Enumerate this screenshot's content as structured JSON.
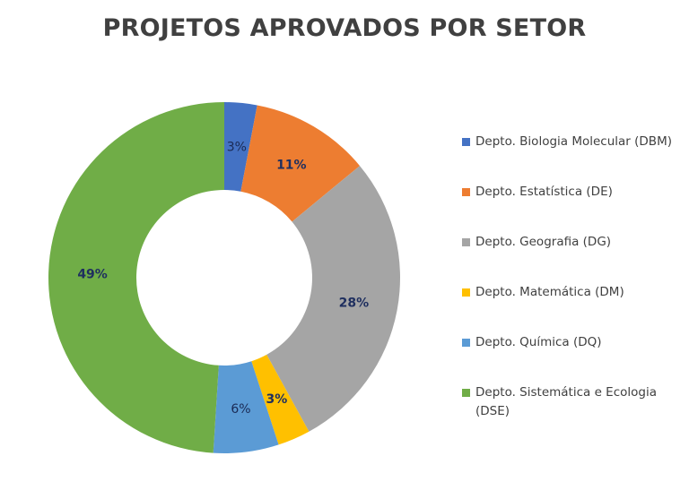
{
  "title": "PROJETOS APROVADOS POR SETOR",
  "chart_data": {
    "type": "pie",
    "subtype": "donut",
    "title": "PROJETOS APROVADOS POR SETOR",
    "categories": [
      "Depto. Biologia Molecular (DBM)",
      "Depto. Estatística (DE)",
      "Depto. Geografia (DG)",
      "Depto. Matemática (DM)",
      "Depto. Química (DQ)",
      "Depto. Sistemática e Ecologia (DSE)"
    ],
    "values": [
      3,
      11,
      28,
      3,
      6,
      49
    ],
    "unit": "%",
    "data_labels": [
      "3%",
      "11%",
      "28%",
      "3%",
      "6%",
      "49%"
    ],
    "colors": [
      "#4472c4",
      "#ed7d31",
      "#a5a5a5",
      "#ffc000",
      "#5b9bd5",
      "#70ad47"
    ],
    "legend_position": "right",
    "start_angle_deg": 0,
    "direction": "clockwise"
  },
  "legend": {
    "items": [
      {
        "label": "Depto. Biologia Molecular (DBM)",
        "color": "#4472c4"
      },
      {
        "label": "Depto. Estatística (DE)",
        "color": "#ed7d31"
      },
      {
        "label": "Depto. Geografia (DG)",
        "color": "#a5a5a5"
      },
      {
        "label": "Depto. Matemática (DM)",
        "color": "#ffc000"
      },
      {
        "label": "Depto. Química (DQ)",
        "color": "#5b9bd5"
      },
      {
        "label": "Depto. Sistemática e Ecologia (DSE)",
        "color": "#70ad47"
      }
    ]
  }
}
